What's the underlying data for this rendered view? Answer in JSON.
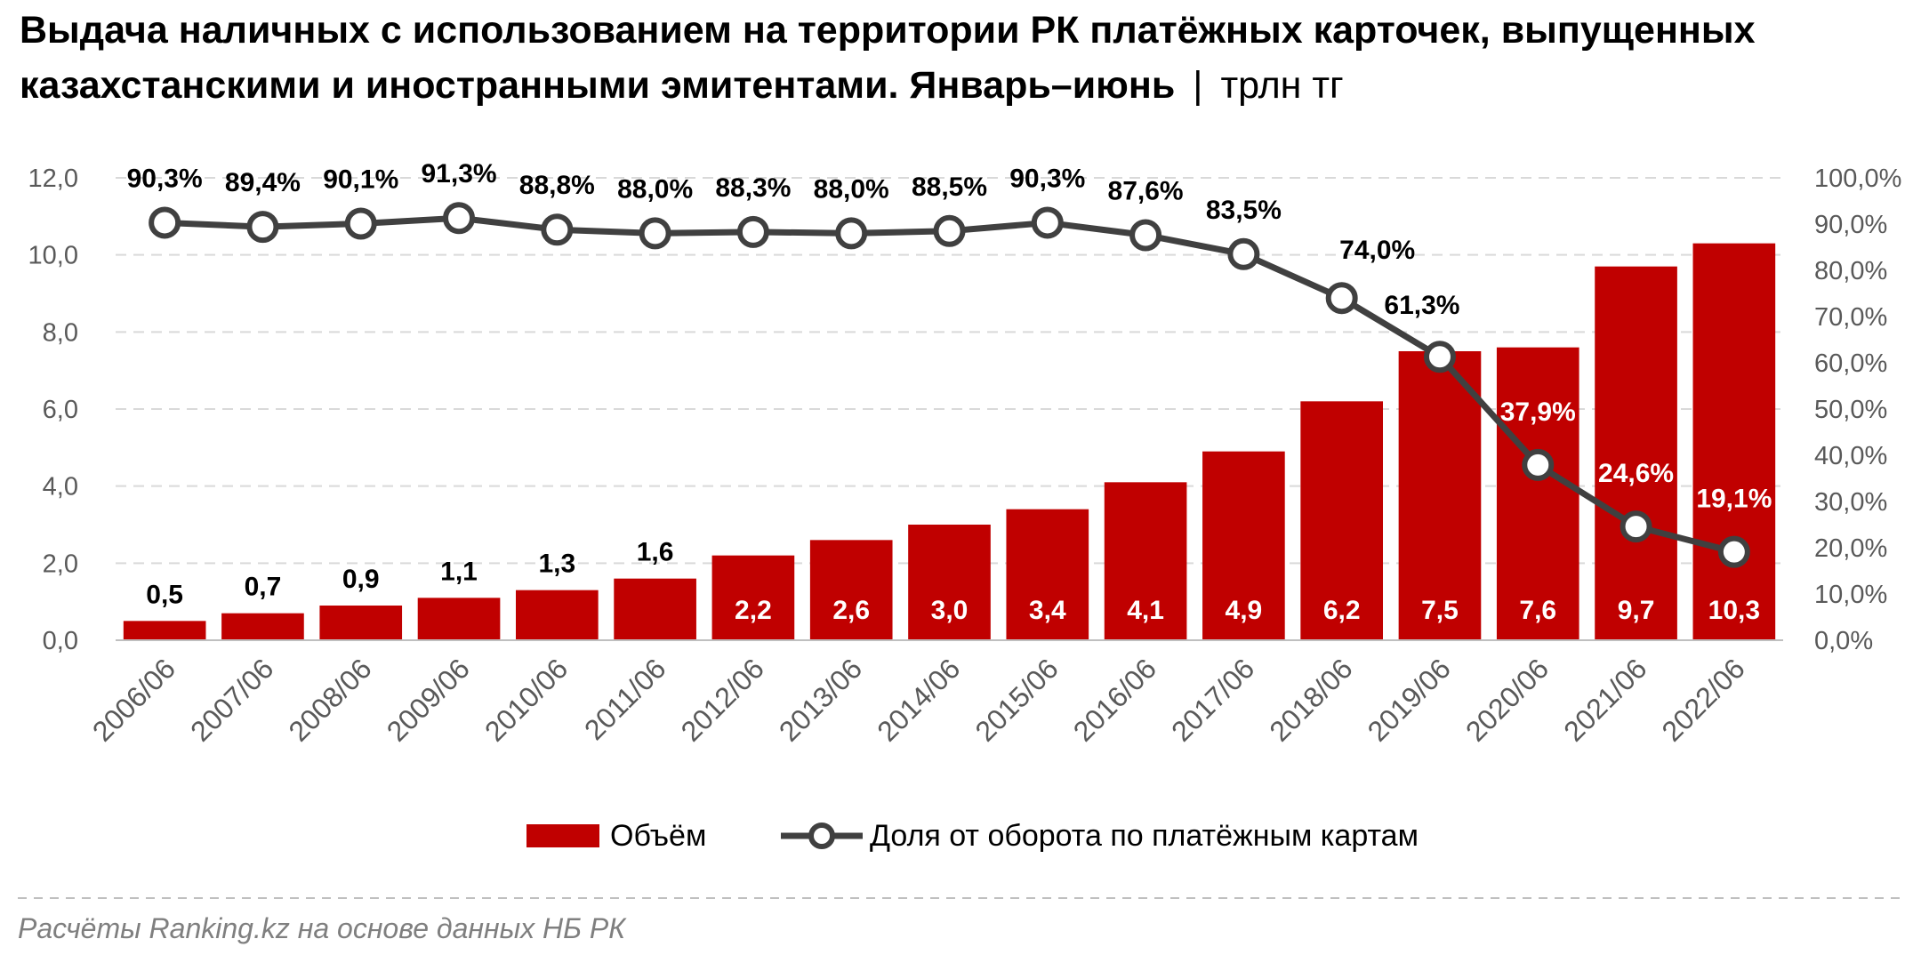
{
  "title": {
    "line1": "Выдача наличных с использованием на территории РК платёжных карточек, выпущенных",
    "line2": "казахстанскими и иностранными эмитентами. Январь–июнь",
    "separator": "|",
    "unit": "трлн тг"
  },
  "source": "Расчёты Ranking.kz на основе данных НБ РК",
  "colors": {
    "bar": "#c00000",
    "line": "#404040",
    "marker_fill": "#ffffff",
    "grid": "#d9d9d9",
    "axis_text": "#595959"
  },
  "chart_data": {
    "type": "bar",
    "categories": [
      "2006/06",
      "2007/06",
      "2008/06",
      "2009/06",
      "2010/06",
      "2011/06",
      "2012/06",
      "2013/06",
      "2014/06",
      "2015/06",
      "2016/06",
      "2017/06",
      "2018/06",
      "2019/06",
      "2020/06",
      "2021/06",
      "2022/06"
    ],
    "series": [
      {
        "name": "Объём",
        "type": "bar",
        "axis": "left",
        "values": [
          0.5,
          0.7,
          0.9,
          1.1,
          1.3,
          1.6,
          2.2,
          2.6,
          3.0,
          3.4,
          4.1,
          4.9,
          6.2,
          7.5,
          7.6,
          9.7,
          10.3
        ],
        "labels": [
          "0,5",
          "0,7",
          "0,9",
          "1,1",
          "1,3",
          "1,6",
          "2,2",
          "2,6",
          "3,0",
          "3,4",
          "4,1",
          "4,9",
          "6,2",
          "7,5",
          "7,6",
          "9,7",
          "10,3"
        ]
      },
      {
        "name": "Доля от оборота по платёжным картам",
        "type": "line",
        "axis": "right",
        "values": [
          90.3,
          89.4,
          90.1,
          91.3,
          88.8,
          88.0,
          88.3,
          88.0,
          88.5,
          90.3,
          87.6,
          83.5,
          74.0,
          61.3,
          37.9,
          24.6,
          19.1
        ],
        "labels": [
          "90,3%",
          "89,4%",
          "90,1%",
          "91,3%",
          "88,8%",
          "88,0%",
          "88,3%",
          "88,0%",
          "88,5%",
          "90,3%",
          "87,6%",
          "83,5%",
          "74,0%",
          "61,3%",
          "37,9%",
          "24,6%",
          "19,1%"
        ]
      }
    ],
    "y_left": {
      "min": 0,
      "max": 12,
      "ticks": [
        "0,0",
        "2,0",
        "4,0",
        "6,0",
        "8,0",
        "10,0",
        "12,0"
      ]
    },
    "y_right": {
      "min": 0,
      "max": 100,
      "ticks": [
        "0,0%",
        "10,0%",
        "20,0%",
        "30,0%",
        "40,0%",
        "50,0%",
        "60,0%",
        "70,0%",
        "80,0%",
        "90,0%",
        "100,0%"
      ]
    },
    "grid": true,
    "legend_position": "bottom"
  }
}
